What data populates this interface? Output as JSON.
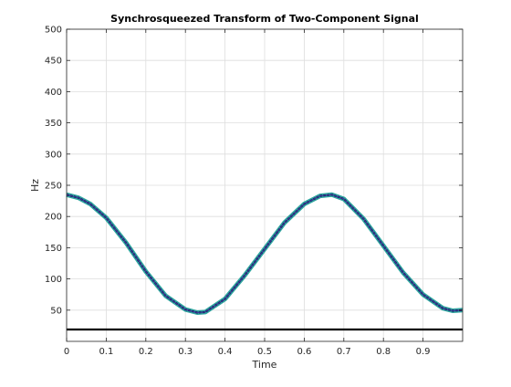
{
  "chart_data": {
    "type": "line",
    "title": "Synchrosqueezed Transform of Two-Component Signal",
    "xlabel": "Time",
    "ylabel": "Hz",
    "xlim": [
      0,
      1
    ],
    "ylim": [
      0,
      500
    ],
    "grid": true,
    "xticks": [
      0,
      0.1,
      0.2,
      0.3,
      0.4,
      0.5,
      0.6,
      0.7,
      0.8,
      0.9
    ],
    "xtick_labels": [
      "0",
      "0.1",
      "0.2",
      "0.3",
      "0.4",
      "0.5",
      "0.6",
      "0.7",
      "0.8",
      "0.9"
    ],
    "yticks": [
      50,
      100,
      150,
      200,
      250,
      300,
      350,
      400,
      450,
      500
    ],
    "ytick_labels": [
      "50",
      "100",
      "150",
      "200",
      "250",
      "300",
      "350",
      "400",
      "450",
      "500"
    ],
    "series": [
      {
        "color": "#1a1a5c",
        "fill_color": "#2fa6a0",
        "x": [
          0,
          0.03,
          0.06,
          0.1,
          0.15,
          0.2,
          0.25,
          0.3,
          0.33,
          0.35,
          0.4,
          0.45,
          0.5,
          0.55,
          0.6,
          0.64,
          0.67,
          0.7,
          0.75,
          0.8,
          0.85,
          0.9,
          0.95,
          0.975,
          1.0
        ],
        "y": [
          235,
          230,
          220,
          198,
          158,
          112,
          73,
          51,
          46,
          47,
          68,
          106,
          148,
          190,
          220,
          233,
          235,
          228,
          196,
          153,
          110,
          75,
          53,
          49,
          50
        ]
      },
      {
        "color": "#000000",
        "x": [
          0,
          1
        ],
        "y": [
          19,
          19
        ]
      }
    ]
  }
}
